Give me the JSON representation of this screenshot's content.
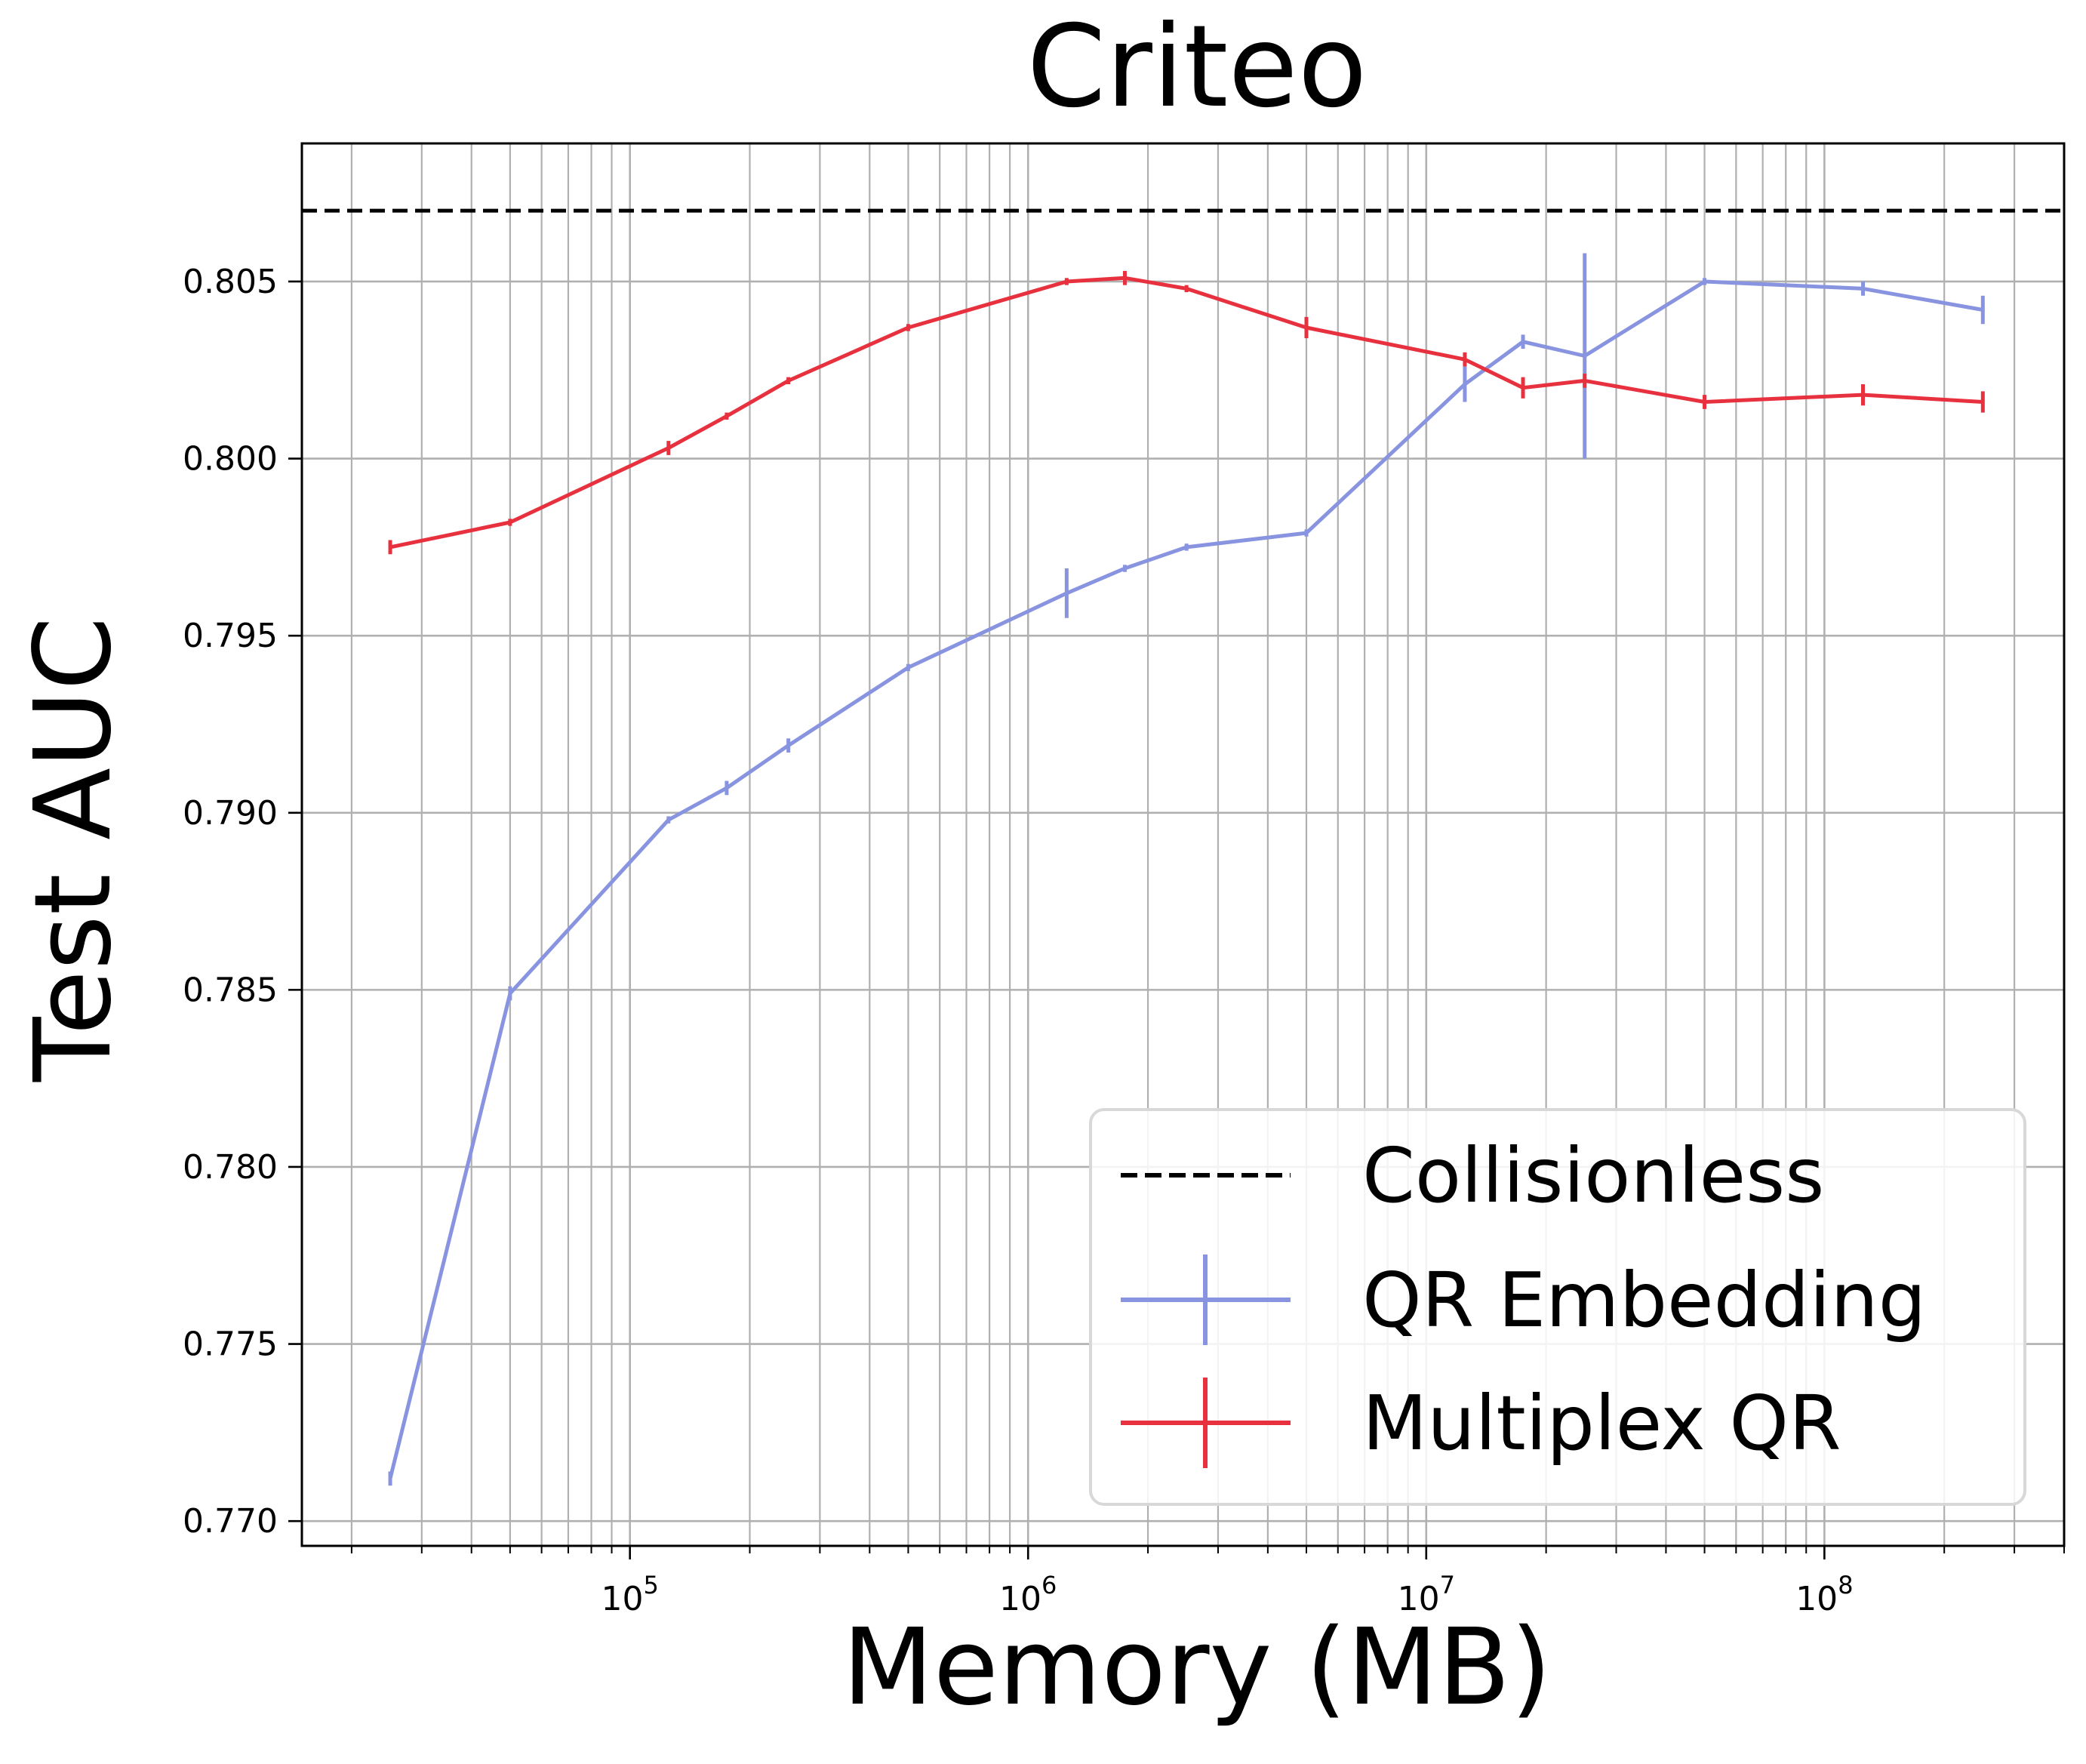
{
  "chart_data": {
    "type": "line",
    "title": "Criteo",
    "xlabel": "Memory (MB)",
    "ylabel": "Test AUC",
    "xscale": "log",
    "xlim": [
      15000,
      400000000
    ],
    "ylim": [
      0.7693,
      0.8089
    ],
    "xticks": [
      {
        "value": 100000,
        "base": "10",
        "exp": "5"
      },
      {
        "value": 1000000,
        "base": "10",
        "exp": "6"
      },
      {
        "value": 10000000,
        "base": "10",
        "exp": "7"
      },
      {
        "value": 100000000,
        "base": "10",
        "exp": "8"
      }
    ],
    "yticks": [
      0.77,
      0.775,
      0.78,
      0.785,
      0.79,
      0.795,
      0.8,
      0.805
    ],
    "ytick_labels": [
      "0.770",
      "0.775",
      "0.780",
      "0.785",
      "0.790",
      "0.795",
      "0.800",
      "0.805"
    ],
    "grid": true,
    "legend_position": "lower-right",
    "reference_line": {
      "name": "Collisionless",
      "y": 0.807,
      "color": "#000000",
      "style": "dashed"
    },
    "series": [
      {
        "name": "QR Embedding",
        "color": "#8894e0",
        "x": [
          25000,
          50000,
          125000,
          175000,
          250000,
          500000,
          1250000,
          1750000,
          2500000,
          5000000,
          12500000,
          17500000,
          25000000,
          50000000,
          125000000,
          250000000
        ],
        "y": [
          0.7712,
          0.7849,
          0.7898,
          0.7907,
          0.7919,
          0.7941,
          0.7962,
          0.7969,
          0.7975,
          0.7979,
          0.8021,
          0.8033,
          0.8029,
          0.805,
          0.8048,
          0.8042
        ],
        "err": [
          0.0002,
          0.0002,
          0.0001,
          0.0002,
          0.0002,
          0.0001,
          0.0007,
          0.0001,
          0.0001,
          0.0001,
          0.0005,
          0.0002,
          0.0029,
          0.0001,
          0.0002,
          0.0004
        ]
      },
      {
        "name": "Multiplex QR",
        "color": "#e8313e",
        "x": [
          25000,
          50000,
          125000,
          175000,
          250000,
          500000,
          1250000,
          1750000,
          2500000,
          5000000,
          12500000,
          17500000,
          25000000,
          50000000,
          125000000,
          250000000
        ],
        "y": [
          0.7975,
          0.7982,
          0.8003,
          0.8012,
          0.8022,
          0.8037,
          0.805,
          0.8051,
          0.8048,
          0.8037,
          0.8028,
          0.802,
          0.8022,
          0.8016,
          0.8018,
          0.8016
        ],
        "err": [
          0.0002,
          0.0001,
          0.0002,
          0.0001,
          0.0001,
          0.0001,
          0.0001,
          0.0002,
          0.0001,
          0.0003,
          0.0002,
          0.0003,
          0.0002,
          0.0002,
          0.0003,
          0.0003
        ]
      }
    ]
  }
}
